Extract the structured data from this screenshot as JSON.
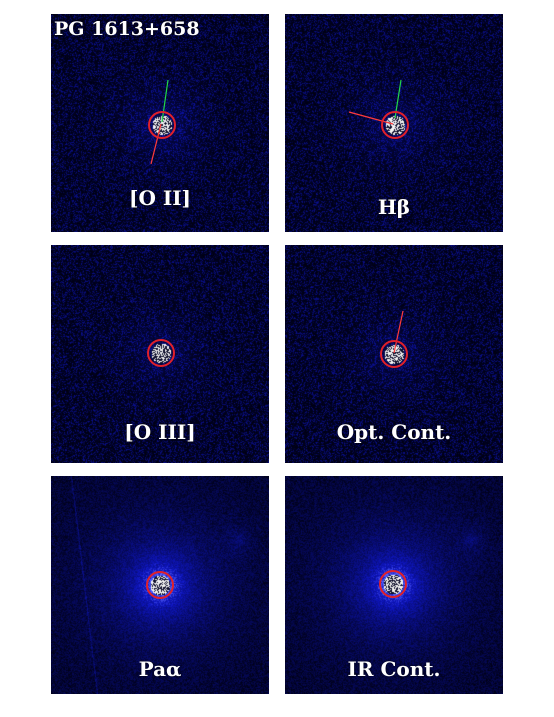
{
  "figure": {
    "title": "PG 1613+658",
    "panels": [
      {
        "label": "[O II]",
        "style": "noisy",
        "glow": 0.35,
        "vector": "green-up-red-down"
      },
      {
        "label": "Hβ",
        "style": "noisy",
        "glow": 0.3,
        "vector": "green-up-red-left"
      },
      {
        "label": "[O III]",
        "style": "noisy",
        "glow": 0.25,
        "vector": "none"
      },
      {
        "label": "Opt. Cont.",
        "style": "noisy",
        "glow": 0.25,
        "vector": "red-up"
      },
      {
        "label": "Paα",
        "style": "smooth",
        "glow": 0.8,
        "vector": "none"
      },
      {
        "label": "IR Cont.",
        "style": "smooth",
        "glow": 0.8,
        "vector": "none"
      }
    ],
    "colors": {
      "background": "#03050f",
      "emission": "#1f2bff",
      "circle": "#e0202a",
      "vector_green": "#22d64a",
      "vector_red": "#ff3b3b"
    }
  }
}
